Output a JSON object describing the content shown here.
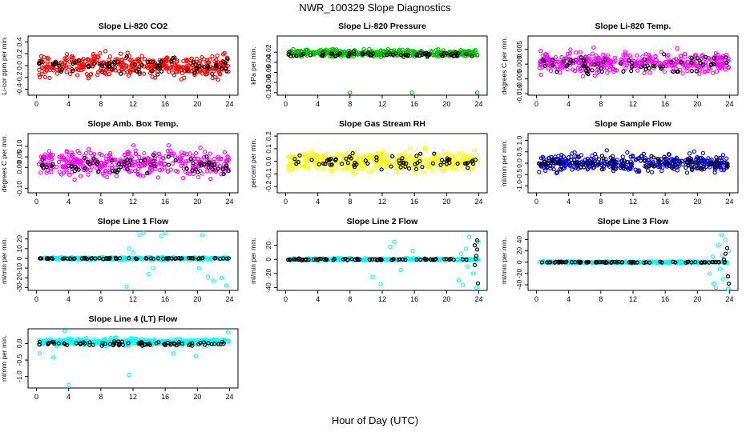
{
  "page": {
    "title": "NWR_100329  Slope Diagnostics",
    "xlabel": "Hour of Day (UTC)"
  },
  "chart_data": [
    {
      "type": "scatter",
      "title": "Slope Li-820 CO2",
      "ylabel": "Li-cor ppm per min.",
      "color": "#ff0000",
      "xlim": [
        0,
        24
      ],
      "xticks": [
        0,
        4,
        8,
        12,
        16,
        20,
        24
      ],
      "ylim": [
        -0.5,
        0.5
      ],
      "yticks": [
        -0.4,
        -0.2,
        0.0,
        0.2,
        0.4
      ],
      "yticklabels": [
        "-0.4",
        "-0.2",
        "0.0",
        "0.2",
        "0.4"
      ],
      "series": [
        {
          "role": "points",
          "spread": 0.17,
          "center": 0.0,
          "n": 380
        },
        {
          "role": "black points",
          "spread": 0.14,
          "center": 0.0,
          "n": 70
        }
      ]
    },
    {
      "type": "scatter",
      "title": "Slope Li-820 Pressure",
      "ylabel": "kPa per min.",
      "color": "#00c000",
      "xlim": [
        0,
        24
      ],
      "xticks": [
        0,
        4,
        8,
        12,
        16,
        20,
        24
      ],
      "ylim": [
        -0.105,
        0.012
      ],
      "yticks": [
        -0.1,
        -0.08,
        -0.06,
        -0.04,
        -0.02
      ],
      "yticklabels": [
        "-0.10",
        "-0.08",
        "-0.06",
        "-0.04",
        "-0.02"
      ],
      "series": [
        {
          "role": "points",
          "spread": 0.006,
          "center": -0.022,
          "n": 380
        },
        {
          "role": "black points",
          "spread": 0.005,
          "center": -0.024,
          "n": 70
        }
      ],
      "outliers": [
        {
          "x": 8.0,
          "y": -0.1
        },
        {
          "x": 15.7,
          "y": -0.1
        },
        {
          "x": 23.8,
          "y": -0.1
        }
      ]
    },
    {
      "type": "scatter",
      "title": "Slope Li-820 Temp.",
      "ylabel": "degrees C per min.",
      "color": "#ff00ff",
      "xlim": [
        0,
        24
      ],
      "xticks": [
        0,
        4,
        8,
        12,
        16,
        20,
        24
      ],
      "ylim": [
        -0.0105,
        0.0095
      ],
      "yticks": [
        -0.01,
        -0.005,
        0.0,
        0.005
      ],
      "yticklabels": [
        "-0.010",
        "-0.005",
        "0.000",
        "0.005"
      ],
      "series": [
        {
          "role": "points",
          "spread": 0.0032,
          "center": 0.0005,
          "n": 380
        },
        {
          "role": "black points",
          "spread": 0.0028,
          "center": 0.0,
          "n": 70
        }
      ]
    },
    {
      "type": "scatter",
      "title": "Slope Amb. Box Temp.",
      "ylabel": "degrees C per min.",
      "color": "#ff00ff",
      "xlim": [
        0,
        24
      ],
      "xticks": [
        0,
        4,
        8,
        12,
        16,
        20,
        24
      ],
      "ylim": [
        -0.12,
        0.16
      ],
      "yticks": [
        -0.1,
        0.0,
        0.05,
        0.1
      ],
      "yticklabels": [
        "-0.10",
        "0.00",
        "0.05",
        "0.10"
      ],
      "series": [
        {
          "role": "points",
          "spread": 0.055,
          "center": 0.02,
          "n": 380
        },
        {
          "role": "black points",
          "spread": 0.05,
          "center": 0.01,
          "n": 70
        }
      ]
    },
    {
      "type": "scatter",
      "title": "Slope Gas Stream RH",
      "ylabel": "percent per min.",
      "color": "#ffff00",
      "xlim": [
        0,
        24
      ],
      "xticks": [
        0,
        4,
        8,
        12,
        16,
        20,
        24
      ],
      "ylim": [
        -0.25,
        0.22
      ],
      "yticks": [
        -0.2,
        -0.1,
        0.0,
        0.1,
        0.2
      ],
      "yticklabels": [
        "-0.2",
        "-0.1",
        "0.0",
        "0.1",
        "0.2"
      ],
      "series": [
        {
          "role": "points",
          "spread": 0.07,
          "center": 0.0,
          "n": 380
        },
        {
          "role": "black points",
          "spread": 0.06,
          "center": 0.0,
          "n": 70
        }
      ]
    },
    {
      "type": "scatter",
      "title": "Slope Sample Flow",
      "ylabel": "ml/min per min.",
      "color": "#0000cc",
      "xlim": [
        0,
        24
      ],
      "xticks": [
        0,
        4,
        8,
        12,
        16,
        20,
        24
      ],
      "ylim": [
        -1.3,
        1.3
      ],
      "yticks": [
        -1.0,
        -0.5,
        0.0,
        0.5,
        1.0
      ],
      "yticklabels": [
        "-1.0",
        "-0.5",
        "0.0",
        "0.5",
        "1.0"
      ],
      "series": [
        {
          "role": "points",
          "spread": 0.35,
          "center": 0.0,
          "n": 380
        },
        {
          "role": "black points",
          "spread": 0.3,
          "center": 0.0,
          "n": 70
        }
      ]
    },
    {
      "type": "scatter",
      "title": "Slope Line 1 Flow",
      "ylabel": "ml/min per min.",
      "color": "#00ffff",
      "xlim": [
        0,
        24
      ],
      "xticks": [
        0,
        4,
        8,
        12,
        16,
        20,
        24
      ],
      "ylim": [
        -33,
        28
      ],
      "yticks": [
        -30,
        -20,
        -10,
        0,
        10,
        20
      ],
      "yticklabels": [
        "-30",
        "-20",
        "-10",
        "0",
        "10",
        "20"
      ],
      "series": [
        {
          "role": "points",
          "spread": 1.2,
          "center": 0.0,
          "n": 300
        },
        {
          "role": "black points",
          "spread": 0.6,
          "center": 0.0,
          "n": 80
        }
      ],
      "outliers": [
        {
          "x": 11.2,
          "y": -29
        },
        {
          "x": 12.8,
          "y": 24
        },
        {
          "x": 13.3,
          "y": 26
        },
        {
          "x": 13.9,
          "y": -16
        },
        {
          "x": 15.5,
          "y": 23
        },
        {
          "x": 16.0,
          "y": 26
        },
        {
          "x": 14.5,
          "y": -10
        },
        {
          "x": 11.5,
          "y": 10
        },
        {
          "x": 20.6,
          "y": 24
        },
        {
          "x": 21.3,
          "y": -19
        },
        {
          "x": 22.0,
          "y": -23
        },
        {
          "x": 23.0,
          "y": -20
        },
        {
          "x": 23.6,
          "y": -28
        },
        {
          "x": 20.2,
          "y": -10
        },
        {
          "x": 12.0,
          "y": 6
        }
      ]
    },
    {
      "type": "scatter",
      "title": "Slope Line 2 Flow",
      "ylabel": "ml/min per min.",
      "color": "#00ffff",
      "xlim": [
        0,
        24
      ],
      "xticks": [
        0,
        4,
        8,
        12,
        16,
        20,
        24
      ],
      "ylim": [
        -44,
        40
      ],
      "yticks": [
        -40,
        -20,
        0,
        20
      ],
      "yticklabels": [
        "-40",
        "-20",
        "0",
        "20"
      ],
      "series": [
        {
          "role": "points",
          "spread": 1.5,
          "center": 0.0,
          "n": 300
        },
        {
          "role": "black points",
          "spread": 1.0,
          "center": 0.0,
          "n": 80
        }
      ],
      "outliers": [
        {
          "x": 10.8,
          "y": -25
        },
        {
          "x": 11.8,
          "y": -35
        },
        {
          "x": 13.0,
          "y": 18
        },
        {
          "x": 13.5,
          "y": 25
        },
        {
          "x": 14.3,
          "y": -15
        },
        {
          "x": 15.8,
          "y": 12
        },
        {
          "x": 21.5,
          "y": -30
        },
        {
          "x": 22.0,
          "y": -36
        },
        {
          "x": 22.4,
          "y": 15
        },
        {
          "x": 22.8,
          "y": 32
        },
        {
          "x": 23.3,
          "y": -20
        },
        {
          "x": 23.7,
          "y": -40
        },
        {
          "x": 23.9,
          "y": 25
        },
        {
          "x": 22.6,
          "y": -10
        },
        {
          "x": 21.8,
          "y": 8
        }
      ],
      "black_outliers": [
        {
          "x": 23.5,
          "y": -8
        },
        {
          "x": 23.7,
          "y": 5
        },
        {
          "x": 23.8,
          "y": 14
        },
        {
          "x": 23.8,
          "y": 27
        },
        {
          "x": 23.9,
          "y": -34
        },
        {
          "x": 23.5,
          "y": 20
        }
      ]
    },
    {
      "type": "scatter",
      "title": "Slope Line 3 Flow",
      "ylabel": "ml/min per min.",
      "color": "#00ffff",
      "xlim": [
        0,
        24
      ],
      "xticks": [
        0,
        4,
        8,
        12,
        16,
        20,
        24
      ],
      "ylim": [
        -50,
        55
      ],
      "yticks": [
        -40,
        -20,
        0,
        20,
        40
      ],
      "yticklabels": [
        "-40",
        "-20",
        "0",
        "20",
        "40"
      ],
      "series": [
        {
          "role": "points",
          "spread": 1.5,
          "center": 0.0,
          "n": 300
        },
        {
          "role": "black points",
          "spread": 1.0,
          "center": 0.0,
          "n": 80
        }
      ],
      "outliers": [
        {
          "x": 21.5,
          "y": -20
        },
        {
          "x": 22.0,
          "y": -38
        },
        {
          "x": 22.3,
          "y": -45
        },
        {
          "x": 22.6,
          "y": 30
        },
        {
          "x": 23.0,
          "y": 48
        },
        {
          "x": 23.2,
          "y": -30
        },
        {
          "x": 23.5,
          "y": 40
        },
        {
          "x": 23.8,
          "y": -48
        },
        {
          "x": 23.1,
          "y": 12
        },
        {
          "x": 22.8,
          "y": -12
        },
        {
          "x": 23.9,
          "y": 20
        },
        {
          "x": 21.9,
          "y": 10
        }
      ],
      "black_outliers": [
        {
          "x": 23.3,
          "y": 5
        },
        {
          "x": 23.5,
          "y": 15
        },
        {
          "x": 23.7,
          "y": 25
        },
        {
          "x": 23.8,
          "y": -25
        },
        {
          "x": 23.9,
          "y": -38
        }
      ]
    },
    {
      "type": "scatter",
      "title": "Slope Line 4 (LT) Flow",
      "ylabel": "ml/min per min.",
      "color": "#00ffff",
      "xlim": [
        0,
        24
      ],
      "xticks": [
        0,
        4,
        8,
        12,
        16,
        20,
        24
      ],
      "ylim": [
        -1.35,
        0.45
      ],
      "yticks": [
        -1.0,
        -0.5,
        0.0
      ],
      "yticklabels": [
        "-1.0",
        "-0.5",
        "0.0"
      ],
      "series": [
        {
          "role": "points",
          "spread": 0.09,
          "center": 0.05,
          "n": 420
        },
        {
          "role": "black points",
          "spread": 0.07,
          "center": 0.0,
          "n": 80
        }
      ],
      "outliers": [
        {
          "x": 4.0,
          "y": -1.25
        },
        {
          "x": 11.5,
          "y": -0.95
        },
        {
          "x": 3.5,
          "y": 0.38
        },
        {
          "x": 23.8,
          "y": 0.35
        },
        {
          "x": 2.1,
          "y": -0.42
        },
        {
          "x": 17.0,
          "y": -0.3
        },
        {
          "x": 19.8,
          "y": -0.38
        },
        {
          "x": 0.4,
          "y": -0.3
        }
      ]
    }
  ]
}
